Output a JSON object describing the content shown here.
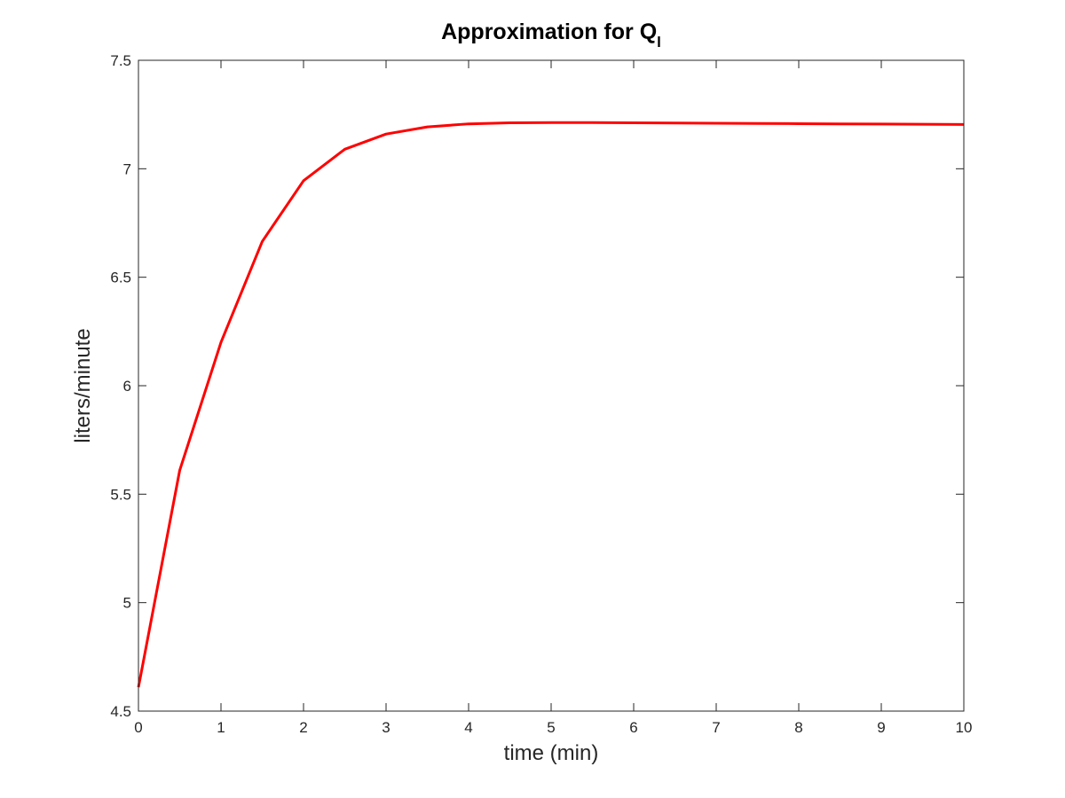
{
  "chart_data": {
    "type": "line",
    "title": "Approximation for Q",
    "title_subscript": "l",
    "xlabel": "time (min)",
    "ylabel": "liters/minute",
    "xlim": [
      0,
      10
    ],
    "ylim": [
      4.5,
      7.5
    ],
    "xticks": [
      0,
      1,
      2,
      3,
      4,
      5,
      6,
      7,
      8,
      9,
      10
    ],
    "yticks": [
      4.5,
      5,
      5.5,
      6,
      6.5,
      7,
      7.5
    ],
    "xtick_labels": [
      "0",
      "1",
      "2",
      "3",
      "4",
      "5",
      "6",
      "7",
      "8",
      "9",
      "10"
    ],
    "ytick_labels": [
      "4.5",
      "5",
      "5.5",
      "6",
      "6.5",
      "7",
      "7.5"
    ],
    "grid": false,
    "line_color": "#ff0000",
    "series": [
      {
        "x": [
          0,
          0.5,
          1,
          1.5,
          2,
          2.5,
          3,
          3.5,
          4,
          4.5,
          5,
          5.5,
          6,
          6.5,
          7,
          7.5,
          8,
          8.5,
          9,
          9.5,
          10
        ],
        "y": [
          4.61,
          5.61,
          6.2,
          6.665,
          6.945,
          7.09,
          7.16,
          7.193,
          7.207,
          7.212,
          7.213,
          7.213,
          7.212,
          7.211,
          7.21,
          7.209,
          7.208,
          7.207,
          7.206,
          7.205,
          7.204
        ]
      }
    ]
  }
}
